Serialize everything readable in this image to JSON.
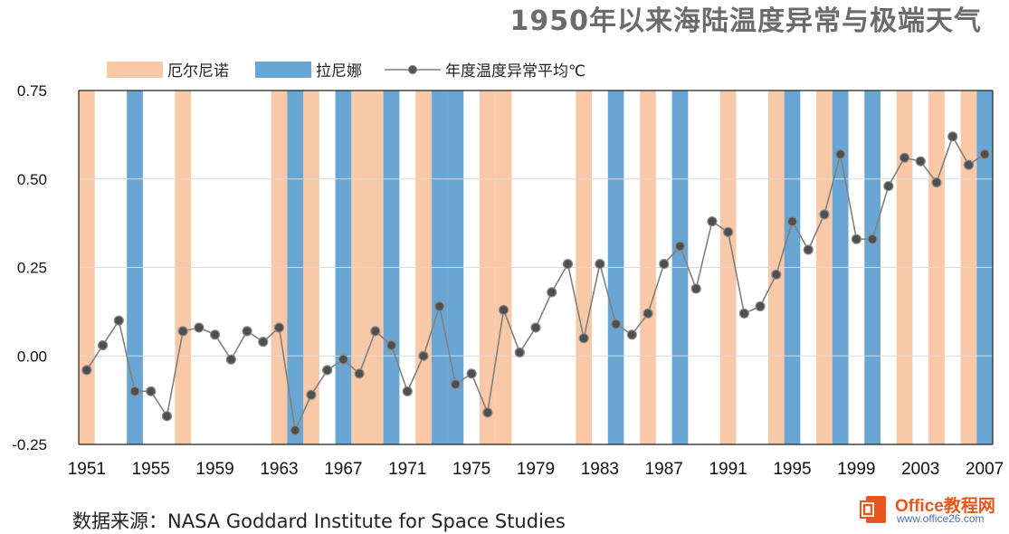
{
  "chart_data": {
    "type": "line",
    "title": "1950年以来海陆温度异常与极端天气",
    "xlabel": "",
    "ylabel": "",
    "ylim": [
      -0.25,
      0.75
    ],
    "y_ticks": [
      "0.75",
      "0.50",
      "0.25",
      "0.00",
      "-0.25"
    ],
    "x_tick_labels": [
      "1951",
      "1955",
      "1959",
      "1963",
      "1967",
      "1971",
      "1975",
      "1979",
      "1983",
      "1987",
      "1991",
      "1995",
      "1999",
      "2003",
      "2007"
    ],
    "x": [
      1951,
      1952,
      1953,
      1954,
      1955,
      1956,
      1957,
      1958,
      1959,
      1960,
      1961,
      1962,
      1963,
      1964,
      1965,
      1966,
      1967,
      1968,
      1969,
      1970,
      1971,
      1972,
      1973,
      1974,
      1975,
      1976,
      1977,
      1978,
      1979,
      1980,
      1981,
      1982,
      1983,
      1984,
      1985,
      1986,
      1987,
      1988,
      1989,
      1990,
      1991,
      1992,
      1993,
      1994,
      1995,
      1996,
      1997,
      1998,
      1999,
      2000,
      2001,
      2002,
      2003,
      2004,
      2005,
      2006,
      2007
    ],
    "series": [
      {
        "name": "年度温度异常平均℃",
        "color": "#808080",
        "values": [
          -0.04,
          0.03,
          0.1,
          -0.1,
          -0.1,
          -0.17,
          0.07,
          0.08,
          0.06,
          -0.01,
          0.07,
          0.04,
          0.08,
          -0.21,
          -0.11,
          -0.04,
          -0.01,
          -0.05,
          0.07,
          0.03,
          -0.1,
          0.0,
          0.14,
          -0.08,
          -0.05,
          -0.16,
          0.13,
          0.01,
          0.08,
          0.18,
          0.26,
          0.05,
          0.26,
          0.09,
          0.06,
          0.12,
          0.26,
          0.31,
          0.19,
          0.38,
          0.35,
          0.12,
          0.14,
          0.23,
          0.38,
          0.3,
          0.4,
          0.57,
          0.33,
          0.33,
          0.48,
          0.56,
          0.55,
          0.49,
          0.62,
          0.54,
          0.57
        ]
      }
    ],
    "el_nino_years": [
      1951,
      1957,
      1963,
      1965,
      1968,
      1969,
      1972,
      1976,
      1977,
      1982,
      1986,
      1991,
      1994,
      1997,
      2002,
      2004,
      2006
    ],
    "la_nina_years": [
      1954,
      1964,
      1967,
      1970,
      1973,
      1974,
      1984,
      1988,
      1995,
      1998,
      2000,
      2007
    ],
    "legend": [
      {
        "label": "厄尔尼诺",
        "color": "#f9c8a6"
      },
      {
        "label": "拉尼娜",
        "color": "#6aa6d4"
      },
      {
        "label": "年度温度异常平均℃",
        "color": "#808080"
      }
    ],
    "legend_position": "top-left",
    "grid": true
  },
  "source": "数据来源：NASA Goddard Institute for Space Studies",
  "watermark": {
    "name": "Office教程网",
    "url": "www.office26.com",
    "icon": "office-logo-icon"
  }
}
